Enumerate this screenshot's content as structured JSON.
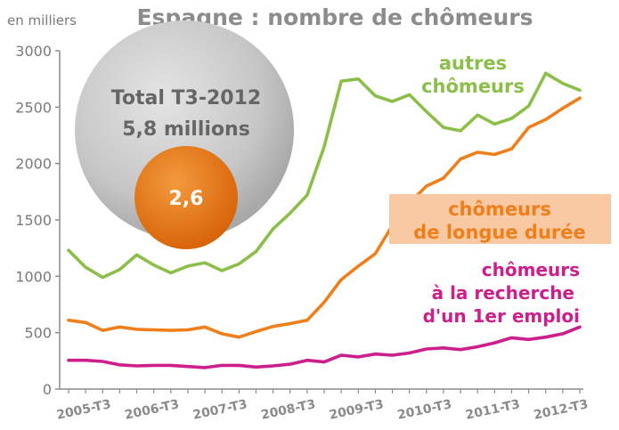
{
  "header": {
    "title": "Espagne : nombre de chômeurs",
    "unit": "en milliers"
  },
  "bubble": {
    "line1": "Total T3-2012",
    "line2": "5,8 millions",
    "inner": "2,6"
  },
  "labels": {
    "autres": [
      "autres",
      "chômeurs"
    ],
    "longue": [
      "chômeurs",
      "de longue durée"
    ],
    "premier": [
      "chômeurs",
      "à la recherche",
      "d'un 1er emploi"
    ]
  },
  "colors": {
    "autres": "#8cbf4a",
    "longue": "#ef7f1a",
    "premier": "#cc1f8c",
    "longue_box": "#f8c9a3",
    "axis": "#8c8c8c"
  },
  "chart_data": {
    "type": "line",
    "title": "Espagne : nombre de chômeurs",
    "ylabel": "en milliers",
    "ylim": [
      0,
      3000
    ],
    "yticks": [
      0,
      500,
      1000,
      1500,
      2000,
      2500,
      3000
    ],
    "xtick_labels": [
      "2005-T3",
      "2006-T3",
      "2007-T3",
      "2008-T3",
      "2009-T3",
      "2010-T3",
      "2011-T3",
      "2012-T3"
    ],
    "x": [
      "2005-T1",
      "2005-T2",
      "2005-T3",
      "2005-T4",
      "2006-T1",
      "2006-T2",
      "2006-T3",
      "2006-T4",
      "2007-T1",
      "2007-T2",
      "2007-T3",
      "2007-T4",
      "2008-T1",
      "2008-T2",
      "2008-T3",
      "2008-T4",
      "2009-T1",
      "2009-T2",
      "2009-T3",
      "2009-T4",
      "2010-T1",
      "2010-T2",
      "2010-T3",
      "2010-T4",
      "2011-T1",
      "2011-T2",
      "2011-T3",
      "2011-T4",
      "2012-T1",
      "2012-T2",
      "2012-T3"
    ],
    "series": [
      {
        "name": "autres chômeurs",
        "key": "autres",
        "values": [
          1230,
          1080,
          990,
          1060,
          1190,
          1100,
          1030,
          1090,
          1120,
          1050,
          1110,
          1220,
          1420,
          1560,
          1720,
          2150,
          2730,
          2750,
          2600,
          2550,
          2610,
          2460,
          2320,
          2290,
          2430,
          2350,
          2400,
          2510,
          2800,
          2710,
          2650
        ]
      },
      {
        "name": "chômeurs de longue durée",
        "key": "longue",
        "values": [
          610,
          590,
          520,
          550,
          530,
          525,
          520,
          525,
          550,
          490,
          460,
          510,
          555,
          580,
          610,
          770,
          970,
          1090,
          1200,
          1450,
          1650,
          1800,
          1870,
          2040,
          2100,
          2080,
          2130,
          2320,
          2390,
          2490,
          2580
        ]
      },
      {
        "name": "chômeurs à la recherche d'un 1er emploi",
        "key": "premier",
        "values": [
          255,
          255,
          245,
          215,
          205,
          210,
          210,
          200,
          190,
          210,
          210,
          195,
          205,
          220,
          255,
          240,
          300,
          285,
          310,
          300,
          320,
          355,
          365,
          350,
          375,
          410,
          455,
          440,
          460,
          490,
          550
        ]
      }
    ]
  }
}
